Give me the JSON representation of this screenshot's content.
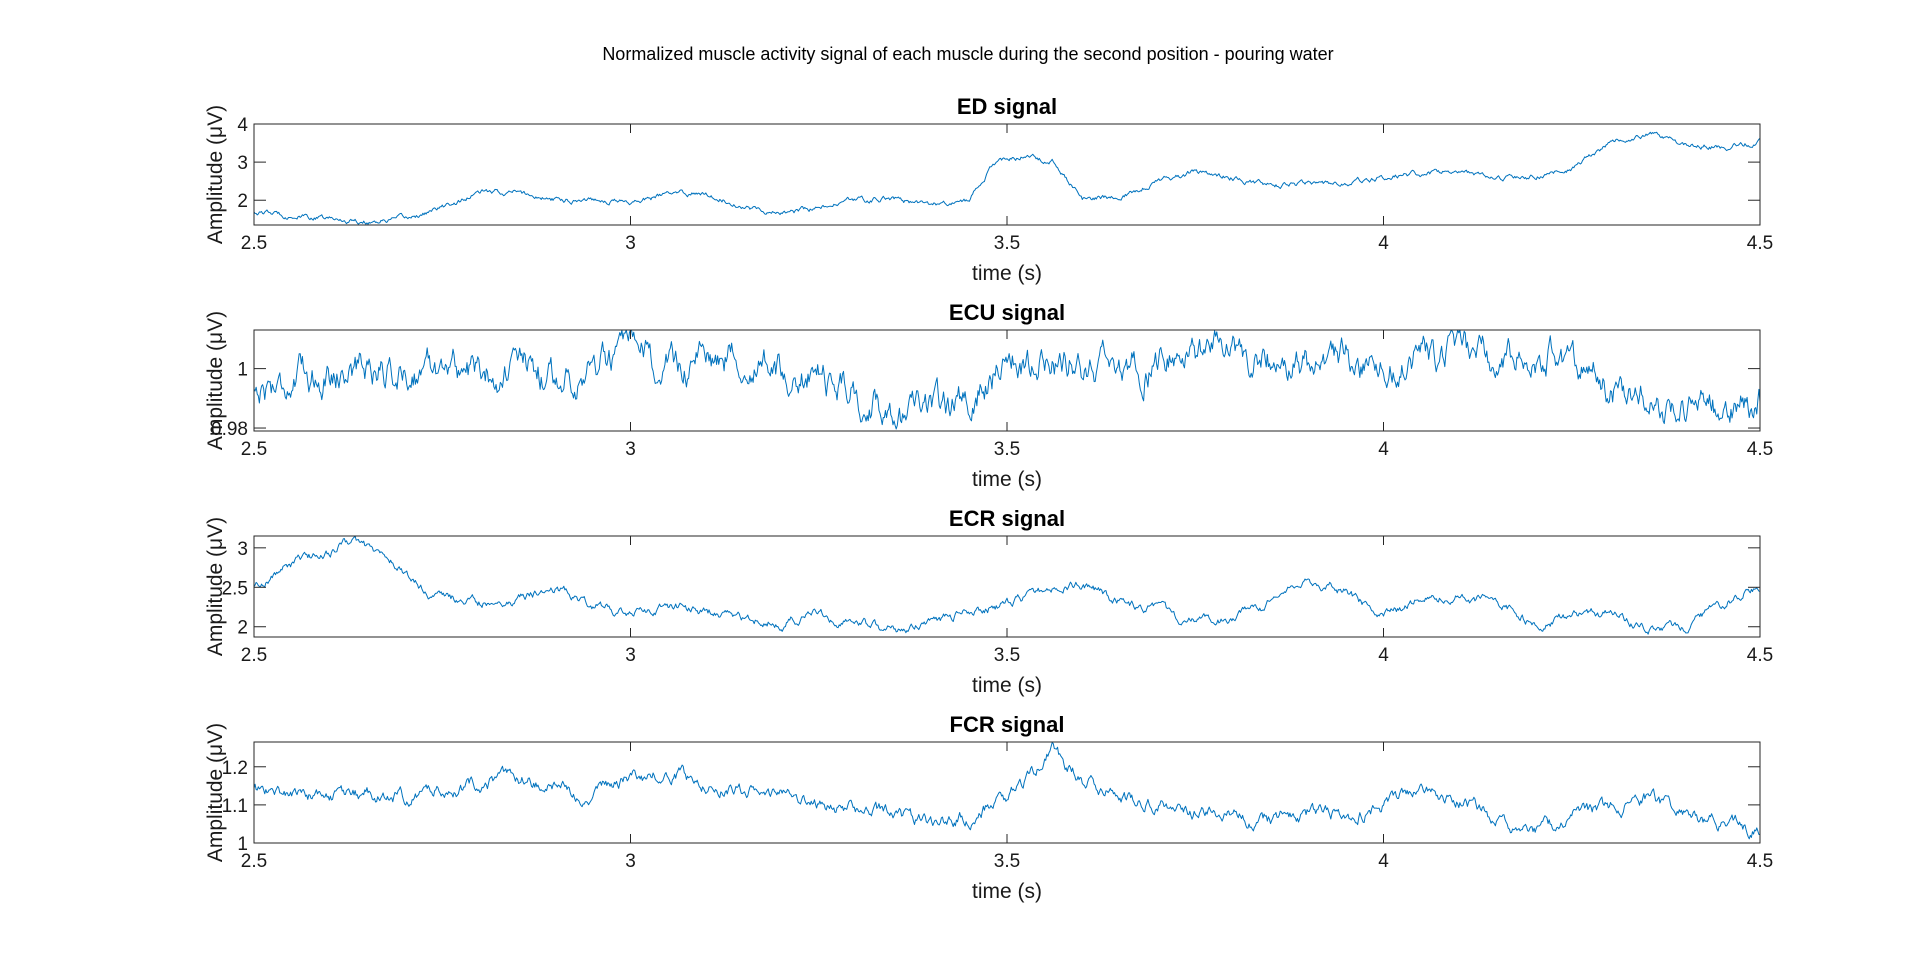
{
  "figure": {
    "suptitle": "Normalized muscle activity signal of each muscle during the second position - pouring water",
    "line_color": "#0072BD"
  },
  "chart_data": [
    {
      "type": "line",
      "title": "ED signal",
      "xlabel": "time (s)",
      "ylabel": "Amplitude (μV)",
      "xlim": [
        2.5,
        4.5
      ],
      "ylim": [
        1.35,
        4.0
      ],
      "xticks": [
        2.5,
        3,
        3.5,
        4,
        4.5
      ],
      "xtick_labels": [
        "2.5",
        "3",
        "3.5",
        "4",
        "4.5"
      ],
      "yticks": [
        2,
        3,
        4
      ],
      "ytick_labels": [
        "2",
        "3",
        "4"
      ],
      "grid": false,
      "noise": 0.05,
      "series": [
        {
          "x": [
            2.5,
            2.55,
            2.6,
            2.65,
            2.7,
            2.75,
            2.8,
            2.85,
            2.9,
            2.95,
            3.0,
            3.05,
            3.1,
            3.15,
            3.2,
            3.25,
            3.3,
            3.35,
            3.4,
            3.45,
            3.48,
            3.52,
            3.56,
            3.6,
            3.65,
            3.7,
            3.75,
            3.8,
            3.85,
            3.9,
            3.95,
            4.0,
            4.05,
            4.1,
            4.15,
            4.2,
            4.25,
            4.3,
            4.35,
            4.4,
            4.45,
            4.5
          ],
          "y": [
            1.7,
            1.6,
            1.5,
            1.45,
            1.5,
            1.8,
            2.2,
            2.2,
            2.0,
            2.05,
            1.95,
            2.15,
            2.2,
            1.85,
            1.65,
            1.8,
            2.0,
            2.05,
            1.85,
            2.0,
            2.9,
            3.15,
            3.05,
            2.05,
            2.1,
            2.5,
            2.75,
            2.6,
            2.35,
            2.45,
            2.45,
            2.6,
            2.7,
            2.75,
            2.5,
            2.65,
            2.8,
            3.5,
            3.75,
            3.45,
            3.4,
            3.55
          ]
        }
      ]
    },
    {
      "type": "line",
      "title": "ECU signal",
      "xlabel": "time (s)",
      "ylabel": "Amplitude (μV)",
      "xlim": [
        2.5,
        4.5
      ],
      "ylim": [
        0.979,
        1.013
      ],
      "xticks": [
        2.5,
        3,
        3.5,
        4,
        4.5
      ],
      "xtick_labels": [
        "2.5",
        "3",
        "3.5",
        "4",
        "4.5"
      ],
      "yticks": [
        0.98,
        1
      ],
      "ytick_labels": [
        "0.98",
        "1"
      ],
      "grid": false,
      "noise": 0.0038,
      "series": [
        {
          "x": [
            2.5,
            2.55,
            2.6,
            2.65,
            2.7,
            2.75,
            2.8,
            2.85,
            2.9,
            2.95,
            3.0,
            3.05,
            3.1,
            3.15,
            3.2,
            3.25,
            3.3,
            3.35,
            3.4,
            3.45,
            3.5,
            3.55,
            3.6,
            3.65,
            3.7,
            3.75,
            3.8,
            3.85,
            3.9,
            3.95,
            4.0,
            4.05,
            4.1,
            4.15,
            4.2,
            4.25,
            4.3,
            4.35,
            4.4,
            4.45,
            4.5
          ],
          "y": [
            0.993,
            0.996,
            0.999,
            1.001,
            0.998,
            1.002,
            0.998,
            1.001,
            0.996,
            1.001,
            1.004,
            1.0,
            1.003,
            1.006,
            0.998,
            0.997,
            0.992,
            0.985,
            0.983,
            0.992,
            1.002,
            1.003,
            1.001,
            0.998,
            1.003,
            1.004,
            1.006,
            1.003,
            1.0,
            1.002,
            1.003,
            1.005,
            1.006,
            1.004,
            1.006,
            1.002,
            0.994,
            0.99,
            0.988,
            0.985,
            0.99
          ]
        }
      ]
    },
    {
      "type": "line",
      "title": "ECR signal",
      "xlabel": "time (s)",
      "ylabel": "Amplitude (μV)",
      "xlim": [
        2.5,
        4.5
      ],
      "ylim": [
        1.87,
        3.15
      ],
      "xticks": [
        2.5,
        3,
        3.5,
        4,
        4.5
      ],
      "xtick_labels": [
        "2.5",
        "3",
        "3.5",
        "4",
        "4.5"
      ],
      "yticks": [
        2,
        2.5,
        3
      ],
      "ytick_labels": [
        "2",
        "2.5",
        "3"
      ],
      "grid": false,
      "noise": 0.04,
      "series": [
        {
          "x": [
            2.5,
            2.55,
            2.6,
            2.63,
            2.68,
            2.72,
            2.75,
            2.8,
            2.85,
            2.9,
            2.95,
            3.0,
            3.05,
            3.1,
            3.15,
            3.2,
            3.25,
            3.3,
            3.35,
            3.4,
            3.45,
            3.5,
            3.55,
            3.6,
            3.65,
            3.7,
            3.75,
            3.8,
            3.85,
            3.9,
            3.95,
            4.0,
            4.05,
            4.1,
            4.15,
            4.2,
            4.25,
            4.3,
            4.35,
            4.4,
            4.45,
            4.5
          ],
          "y": [
            2.5,
            2.8,
            2.95,
            3.1,
            2.85,
            2.5,
            2.35,
            2.3,
            2.35,
            2.5,
            2.3,
            2.15,
            2.25,
            2.2,
            2.1,
            2.05,
            2.15,
            2.05,
            1.95,
            2.05,
            2.2,
            2.3,
            2.45,
            2.55,
            2.3,
            2.2,
            2.05,
            2.1,
            2.3,
            2.6,
            2.45,
            2.1,
            2.35,
            2.4,
            2.3,
            2.05,
            2.15,
            2.15,
            2.0,
            2.0,
            2.3,
            2.55
          ]
        }
      ]
    },
    {
      "type": "line",
      "title": "FCR signal",
      "xlabel": "time (s)",
      "ylabel": "Amplitude (μV)",
      "xlim": [
        2.5,
        4.5
      ],
      "ylim": [
        1.0,
        1.265
      ],
      "xticks": [
        2.5,
        3,
        3.5,
        4,
        4.5
      ],
      "xtick_labels": [
        "2.5",
        "3",
        "3.5",
        "4",
        "4.5"
      ],
      "yticks": [
        1,
        1.1,
        1.2
      ],
      "ytick_labels": [
        "1",
        "1.1",
        "1.2"
      ],
      "grid": false,
      "noise": 0.012,
      "series": [
        {
          "x": [
            2.5,
            2.55,
            2.6,
            2.65,
            2.7,
            2.75,
            2.8,
            2.85,
            2.9,
            2.95,
            3.0,
            3.05,
            3.1,
            3.15,
            3.2,
            3.25,
            3.3,
            3.35,
            3.4,
            3.45,
            3.5,
            3.53,
            3.56,
            3.6,
            3.65,
            3.7,
            3.75,
            3.8,
            3.85,
            3.9,
            3.95,
            4.0,
            4.05,
            4.1,
            4.15,
            4.2,
            4.25,
            4.3,
            4.35,
            4.4,
            4.45,
            4.5
          ],
          "y": [
            1.14,
            1.13,
            1.12,
            1.13,
            1.12,
            1.14,
            1.16,
            1.17,
            1.14,
            1.13,
            1.17,
            1.18,
            1.16,
            1.14,
            1.12,
            1.1,
            1.09,
            1.07,
            1.05,
            1.07,
            1.12,
            1.17,
            1.24,
            1.17,
            1.12,
            1.1,
            1.08,
            1.07,
            1.06,
            1.08,
            1.07,
            1.1,
            1.15,
            1.12,
            1.06,
            1.03,
            1.07,
            1.09,
            1.12,
            1.07,
            1.05,
            1.04
          ]
        }
      ]
    }
  ]
}
